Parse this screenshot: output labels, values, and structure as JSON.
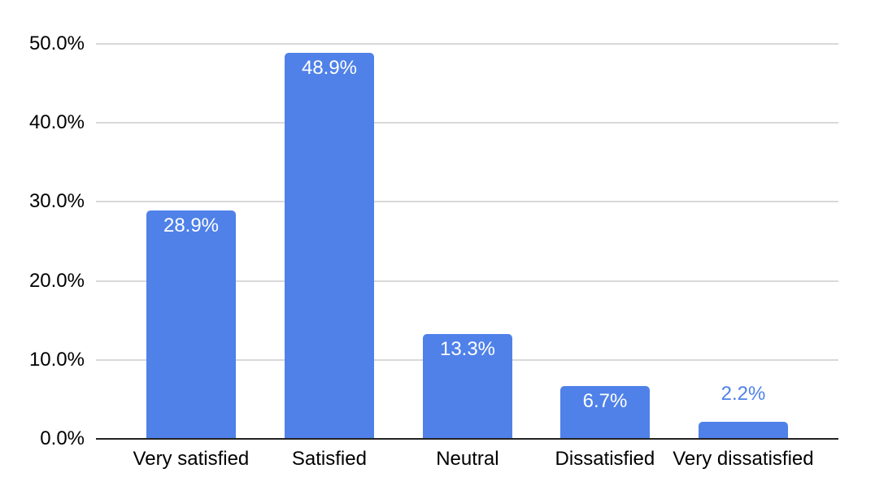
{
  "chart_data": {
    "type": "bar",
    "title": "",
    "xlabel": "",
    "ylabel": "",
    "categories": [
      "Very satisfied",
      "Satisfied",
      "Neutral",
      "Dissatisfied",
      "Very dissatisfied"
    ],
    "values": [
      28.9,
      48.9,
      13.3,
      6.7,
      2.2
    ],
    "value_labels": [
      "28.9%",
      "48.9%",
      "13.3%",
      "6.7%",
      "2.2%"
    ],
    "ylim": [
      0,
      50
    ],
    "y_ticks": {
      "values": [
        50,
        40,
        30,
        20,
        10,
        0
      ],
      "labels": [
        "50.0%",
        "40.0%",
        "30.0%",
        "20.0%",
        "10.0%",
        "0.0%"
      ]
    },
    "grid": true,
    "legend_position": "none",
    "colors": {
      "bar": "#4f81e9",
      "value_label_inside": "#ffffff",
      "value_label_outside": "#4f81e9",
      "gridline": "#d9d9d9",
      "axis_line": "#222222",
      "tick_label": "#000000",
      "background": "#ffffff"
    }
  }
}
